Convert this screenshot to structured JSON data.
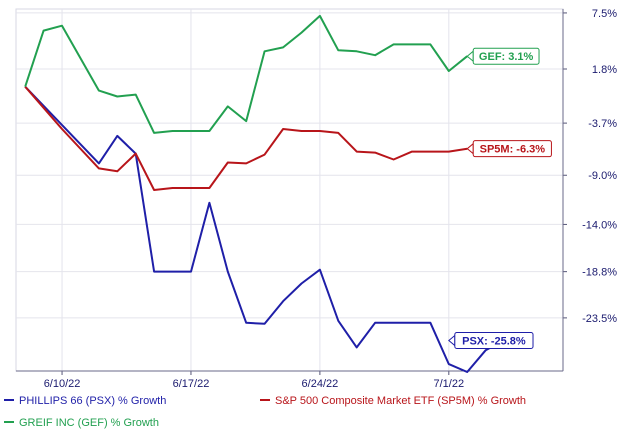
{
  "chart_data": {
    "type": "line",
    "x_tick_labels": [
      "6/10/22",
      "6/17/22",
      "6/24/22",
      "7/1/22"
    ],
    "y_tick_labels": [
      "7.5%",
      "1.8%",
      "-3.7%",
      "-9.0%",
      "-14.0%",
      "-18.8%",
      "-23.5%"
    ],
    "y_ticks": [
      7.5,
      1.8,
      -3.7,
      -9.0,
      -14.0,
      -18.8,
      -23.5
    ],
    "ylim": [
      -28.9,
      7.9
    ],
    "xlim": [
      -0.5,
      29.2
    ],
    "grid": true,
    "legend_position": "bottom",
    "series": [
      {
        "name": "PHILLIPS 66 (PSX) % Growth",
        "tag": "PSX: -25.8%",
        "color": "#1f1fa8",
        "x": [
          0,
          4,
          5,
          6,
          7,
          8,
          9,
          10,
          11,
          12,
          13,
          14,
          15,
          16,
          17,
          18,
          19,
          20,
          21,
          22,
          23,
          24,
          25,
          26,
          27
        ],
        "y": [
          0.0,
          -7.8,
          -5.0,
          -6.8,
          -18.8,
          -18.8,
          -18.8,
          -11.8,
          -18.8,
          -24.0,
          -24.1,
          -21.8,
          -20.0,
          -18.6,
          -23.8,
          -26.5,
          -24.0,
          -24.0,
          -24.0,
          -24.0,
          -28.2,
          -29.0,
          -26.8,
          -25.8,
          -25.8
        ],
        "show_to": 23
      },
      {
        "name": "S&P 500 Composite Market ETF (SP5M) % Growth",
        "tag": "SP5M: -6.3%",
        "color": "#b8151a",
        "x": [
          0,
          2,
          4,
          5,
          6,
          7,
          8,
          9,
          10,
          11,
          12,
          13,
          14,
          15,
          16,
          17,
          18,
          19,
          20,
          21,
          22,
          23,
          24
        ],
        "y": [
          0.0,
          -4.3,
          -8.3,
          -8.6,
          -6.8,
          -10.5,
          -10.3,
          -10.3,
          -10.3,
          -7.7,
          -7.8,
          -6.9,
          -4.3,
          -4.5,
          -4.5,
          -4.7,
          -6.6,
          -6.7,
          -7.4,
          -6.6,
          -6.6,
          -6.6,
          -6.3
        ]
      },
      {
        "name": "GREIF INC (GEF) % Growth",
        "tag": "GEF: 3.1%",
        "color": "#22a050",
        "x": [
          0,
          1,
          2,
          4,
          5,
          6,
          7,
          8,
          9,
          10,
          11,
          12,
          13,
          14,
          15,
          16,
          17,
          18,
          19,
          20,
          21,
          22,
          23,
          24
        ],
        "y": [
          0.0,
          5.7,
          6.2,
          -0.4,
          -1.0,
          -0.8,
          -4.7,
          -4.5,
          -4.5,
          -4.5,
          -2.0,
          -3.5,
          3.6,
          4.0,
          5.5,
          7.2,
          3.7,
          3.6,
          3.2,
          4.3,
          4.3,
          4.3,
          1.6,
          3.1
        ]
      }
    ]
  }
}
